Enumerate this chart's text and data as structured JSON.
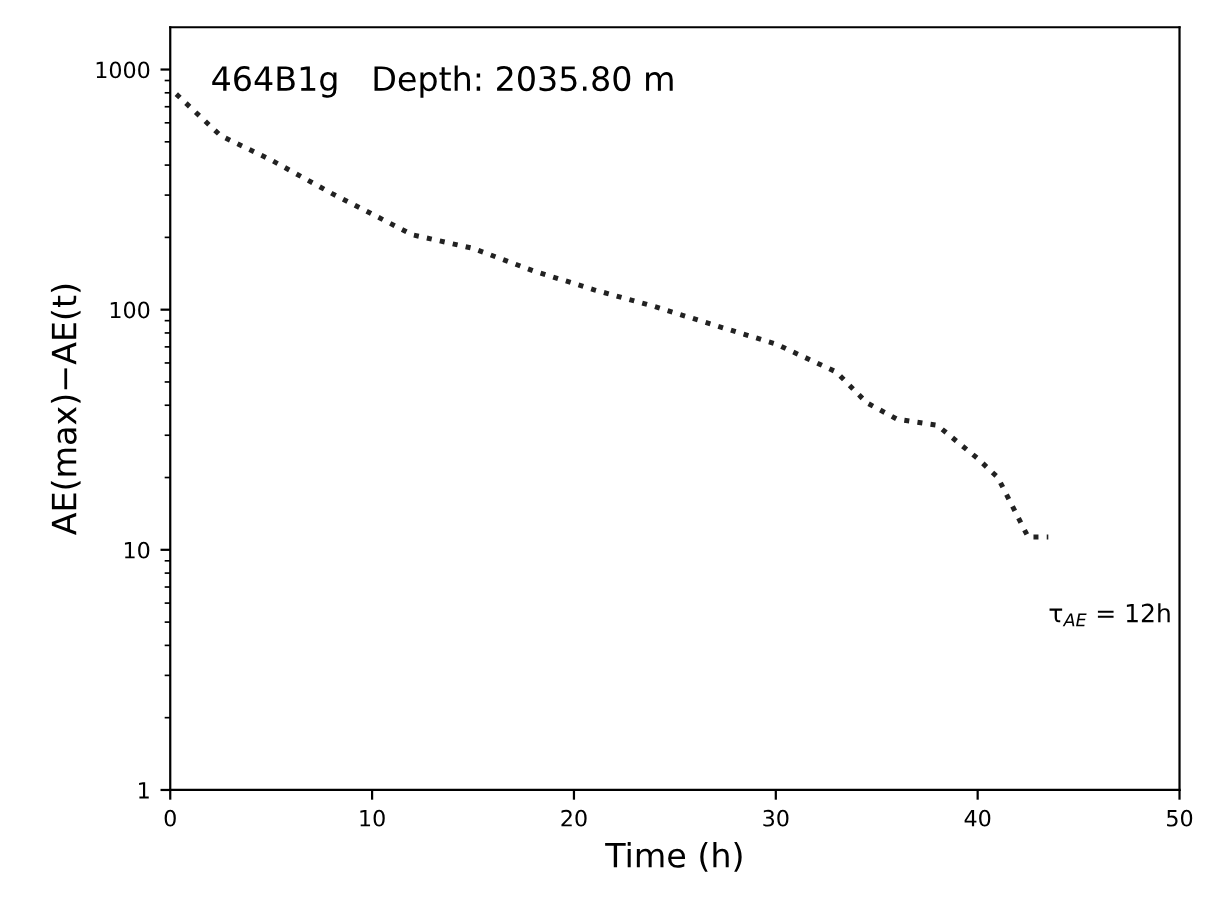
{
  "chart_data": {
    "type": "line",
    "xlabel": "Time (h)",
    "ylabel": "AE(max)−AE(t)",
    "annotations": [
      "464B1g   Depth: 2035.80 m",
      "τ$_{AE}$ = 12h"
    ],
    "series": [
      {
        "color": "#222222",
        "x": [
          0.3,
          2.5,
          5,
          8,
          12,
          15,
          18,
          21,
          24,
          27,
          30,
          33,
          34.5,
          36,
          38,
          40,
          41,
          42.5,
          43.5
        ],
        "values": [
          790,
          530,
          420,
          305,
          205,
          180,
          145,
          121,
          103,
          86,
          72,
          55,
          41,
          35,
          33,
          24,
          20,
          11.3,
          11.3
        ]
      }
    ],
    "log": "y",
    "xlim": [
      0,
      50
    ],
    "ylim": [
      1,
      1500
    ],
    "xticks": [
      0,
      10,
      20,
      30,
      40,
      50
    ],
    "yticks": [
      1,
      10,
      100,
      1000
    ],
    "line_style": "dotted",
    "marker": "none",
    "grid": false,
    "legend": false
  }
}
